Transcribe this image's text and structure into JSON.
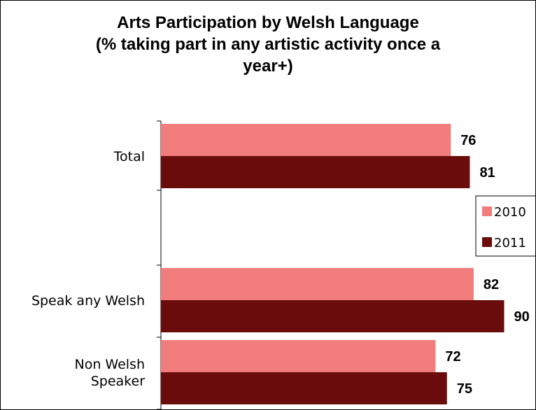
{
  "chart_data": {
    "type": "bar",
    "orientation": "horizontal",
    "title": "Arts Participation by Welsh Language",
    "subtitle_lines": [
      "(% taking part in any artistic activity once a",
      "year+)"
    ],
    "categories": [
      "Total",
      "",
      "Speak any Welsh",
      "Non Welsh Speaker"
    ],
    "category_label_lines": [
      [
        "Total"
      ],
      [],
      [
        "Speak any Welsh"
      ],
      [
        "Non Welsh",
        "Speaker"
      ]
    ],
    "series": [
      {
        "name": "2010",
        "values": [
          76,
          null,
          82,
          72
        ],
        "color": "#F07C7C"
      },
      {
        "name": "2011",
        "values": [
          81,
          null,
          90,
          75
        ],
        "color": "#6B0C0C"
      }
    ],
    "xlim": [
      0,
      100
    ],
    "grid": false,
    "legend_position": "right"
  }
}
